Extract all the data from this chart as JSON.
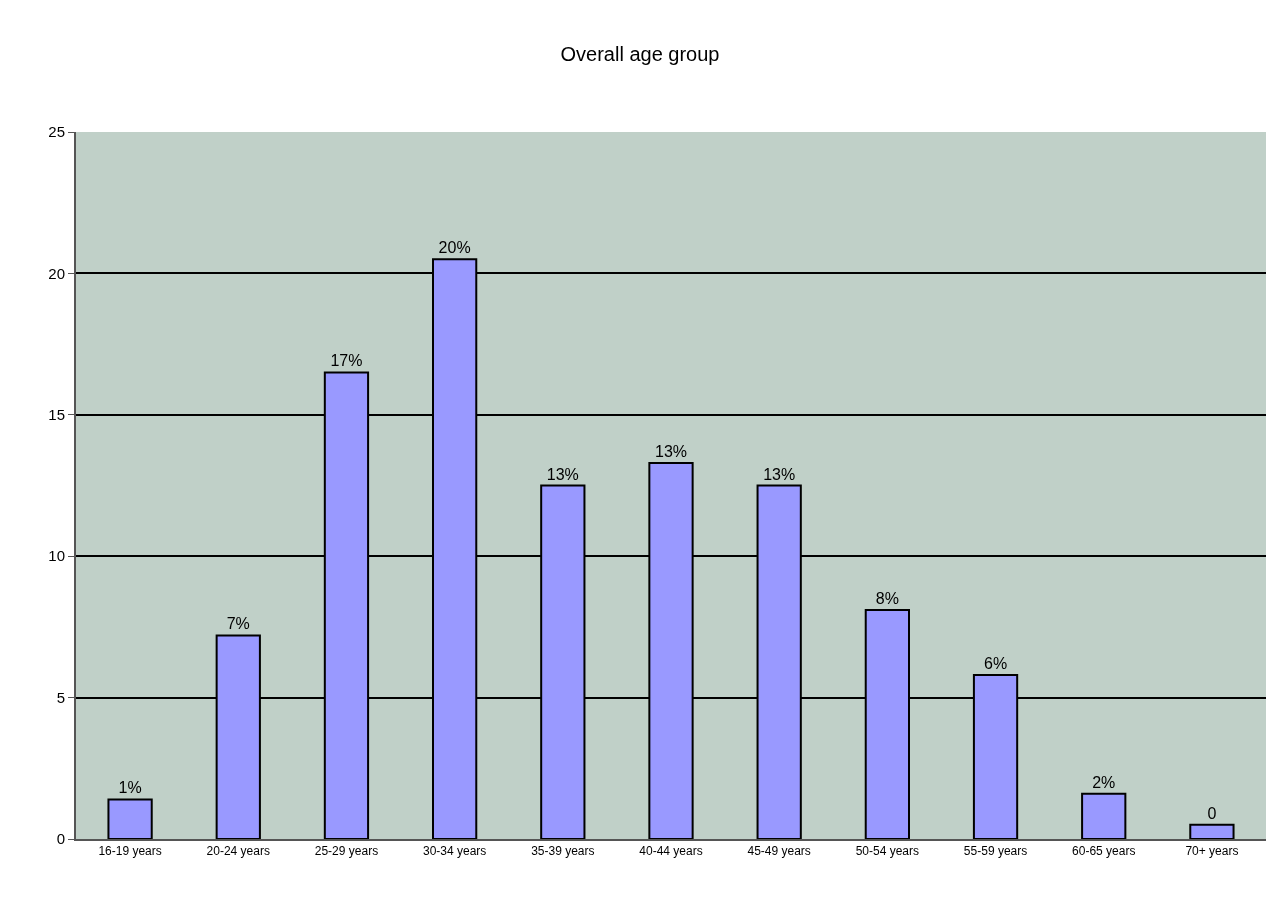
{
  "chart_data": {
    "type": "bar",
    "title": "Overall age group",
    "categories": [
      "16-19 years",
      "20-24 years",
      "25-29 years",
      "30-34 years",
      "35-39 years",
      "40-44 years",
      "45-49 years",
      "50-54 years",
      "55-59 years",
      "60-65 years",
      "70+ years"
    ],
    "values": [
      1.4,
      7.2,
      16.5,
      20.5,
      12.5,
      13.3,
      12.5,
      8.1,
      5.8,
      1.6,
      0.5
    ],
    "value_labels": [
      "1%",
      "7%",
      "17%",
      "20%",
      "13%",
      "13%",
      "13%",
      "8%",
      "6%",
      "2%",
      "0"
    ],
    "color": "#9999ff",
    "ylim": [
      0,
      25
    ],
    "yticks": [
      0,
      5,
      10,
      15,
      20,
      25
    ],
    "grid": "y",
    "legend": false
  }
}
